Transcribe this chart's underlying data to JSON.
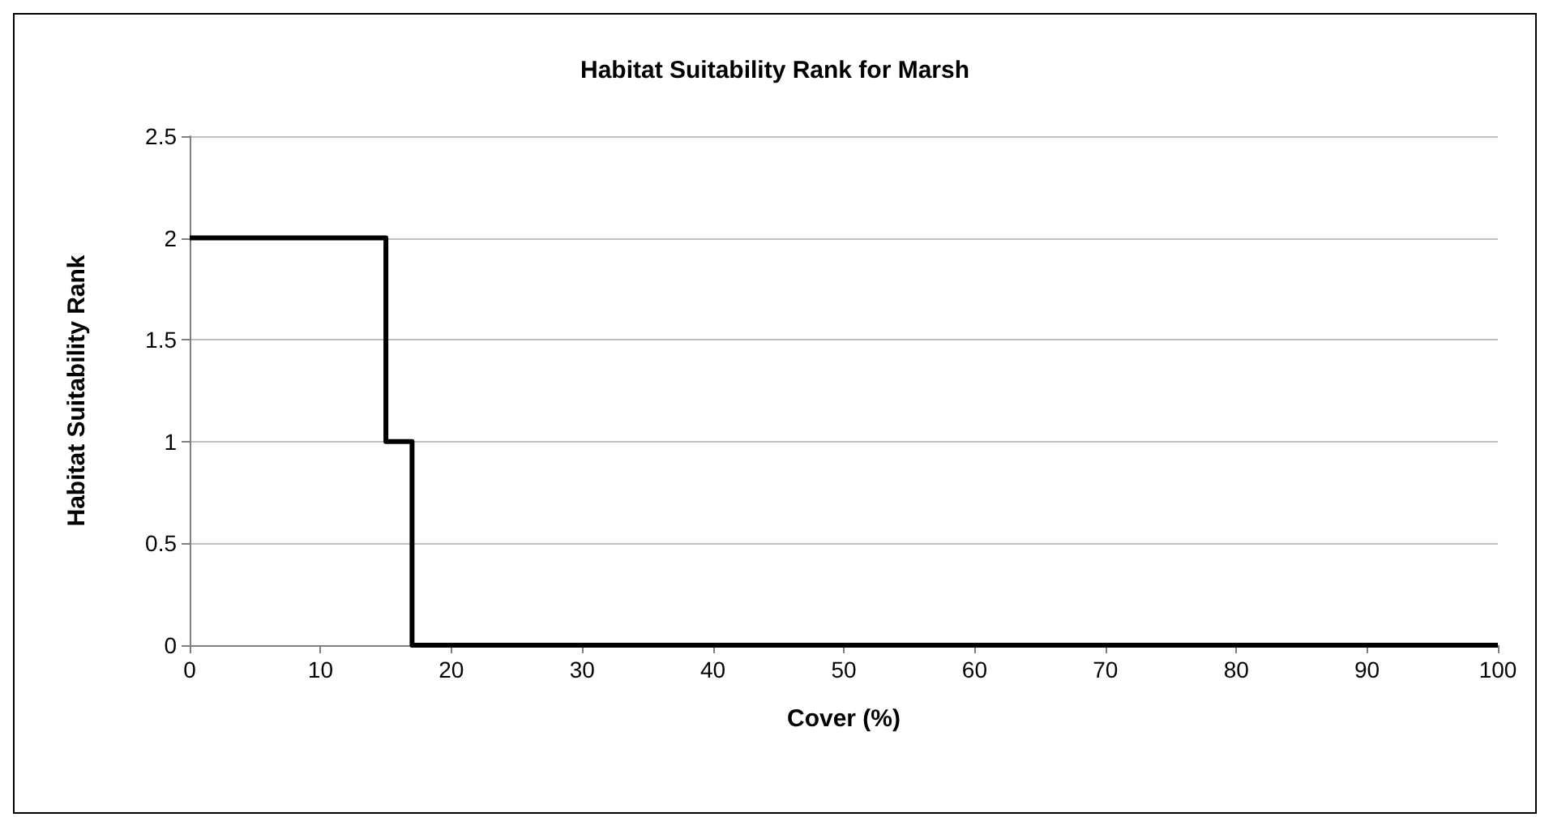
{
  "chart_data": {
    "type": "line",
    "title": "Habitat Suitability Rank for Marsh",
    "xlabel": "Cover (%)",
    "ylabel": "Habitat Suitability Rank",
    "x": [
      0,
      15,
      15,
      17,
      17,
      100
    ],
    "series": [
      {
        "color": "#000000",
        "values": [
          2,
          2,
          1,
          1,
          0,
          0
        ]
      }
    ],
    "xlim": [
      0,
      100
    ],
    "xticks": [
      0,
      10,
      20,
      30,
      40,
      50,
      60,
      70,
      80,
      90,
      100
    ],
    "ylim": [
      0,
      2.5
    ],
    "yticks": [
      0,
      0.5,
      1,
      1.5,
      2,
      2.5
    ],
    "grid": "y",
    "marker": "none",
    "line_style": "solid"
  }
}
